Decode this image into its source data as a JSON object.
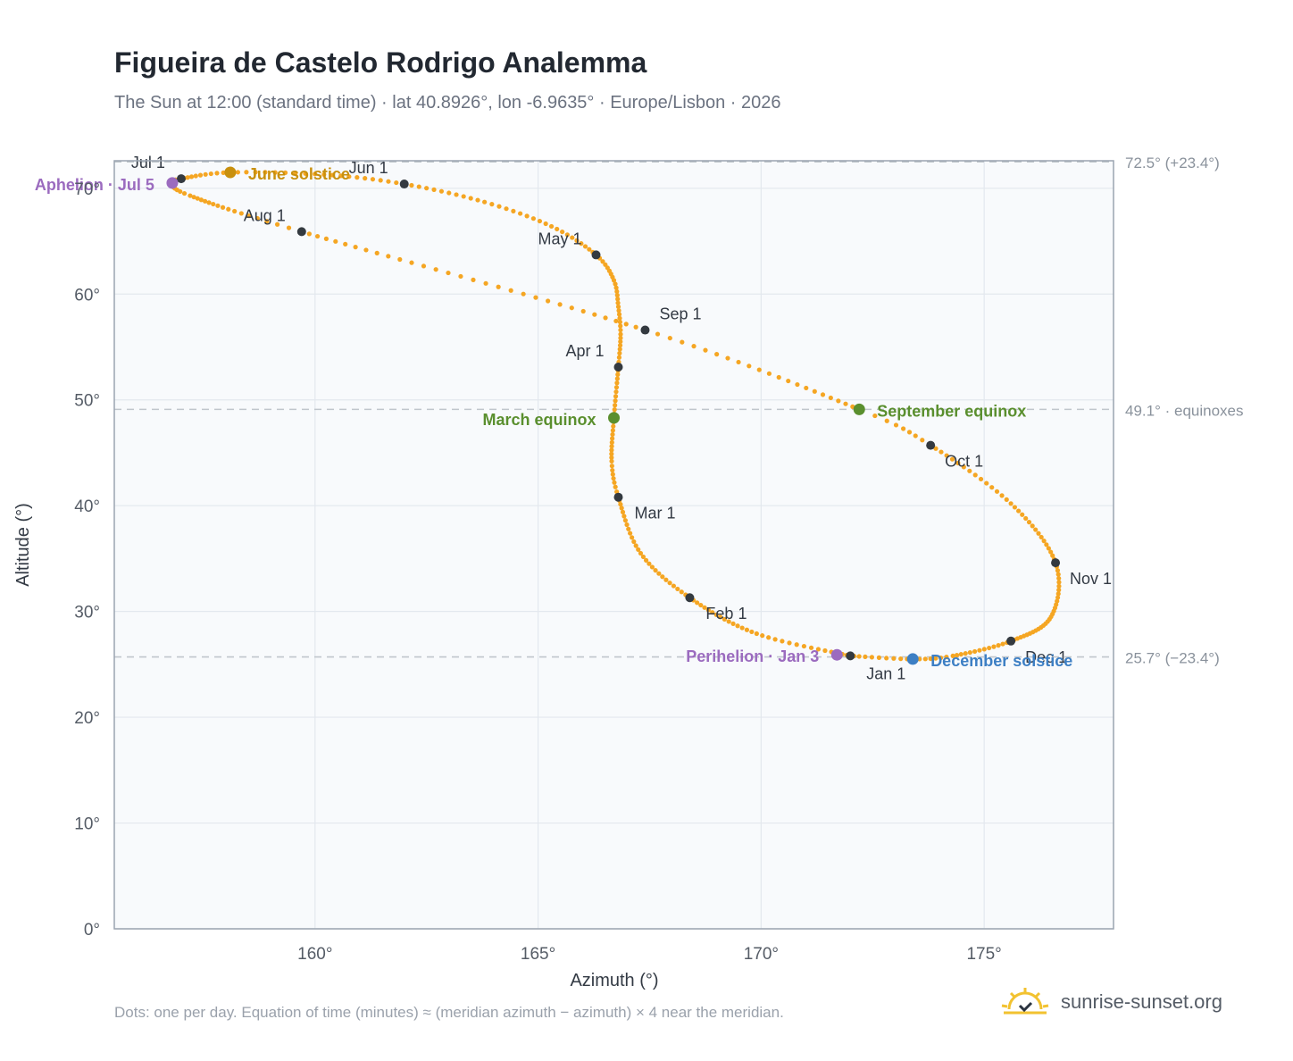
{
  "header": {
    "title": "Figueira de Castelo Rodrigo Analemma",
    "subtitle": "The Sun at 12:00 (standard time) · lat 40.8926°, lon -6.9635° · Europe/Lisbon · 2026"
  },
  "footer": {
    "note": "Dots: one per day. Equation of time (minutes) ≈ (meridian azimuth − azimuth) × 4 near the meridian.",
    "brand": "sunrise-sunset.org"
  },
  "colors": {
    "curve": "#f5a623",
    "month_marker": "#343a40",
    "equinox": "#5a8f2e",
    "june_solstice": "#c8900e",
    "december_solstice": "#3d7fc4",
    "apsis": "#9b6bbf",
    "plot_bg": "#f8fafc",
    "grid": "#e3e8ee",
    "reference_line": "#c0c6cc",
    "axis_frame": "#9aa4b0"
  },
  "chart_data": {
    "type": "scatter",
    "title": "Figueira de Castelo Rodrigo Analemma",
    "xlabel": "Azimuth (°)",
    "ylabel": "Altitude (°)",
    "xlim": [
      155.5,
      177.9
    ],
    "ylim": [
      0,
      72.6
    ],
    "xticks": [
      160,
      165,
      170,
      175
    ],
    "xtick_labels": [
      "160°",
      "165°",
      "170°",
      "175°"
    ],
    "yticks": [
      0,
      10,
      20,
      30,
      40,
      50,
      60,
      70
    ],
    "ytick_labels": [
      "0°",
      "10°",
      "20°",
      "30°",
      "40°",
      "50°",
      "60°",
      "70°"
    ],
    "grid": true,
    "series": [
      {
        "points": [
          {
            "day": 1,
            "az": 172.0,
            "alt": 25.8
          },
          {
            "day": 16,
            "az": 169.9,
            "alt": 27.9
          },
          {
            "day": 32,
            "az": 168.4,
            "alt": 31.3
          },
          {
            "day": 46,
            "az": 167.3,
            "alt": 35.5
          },
          {
            "day": 60,
            "az": 166.8,
            "alt": 40.8
          },
          {
            "day": 68,
            "az": 166.65,
            "alt": 44.2
          },
          {
            "day": 79,
            "az": 166.7,
            "alt": 48.3
          },
          {
            "day": 91,
            "az": 166.8,
            "alt": 53.1
          },
          {
            "day": 99,
            "az": 166.85,
            "alt": 56.2
          },
          {
            "day": 106,
            "az": 166.8,
            "alt": 58.8
          },
          {
            "day": 113,
            "az": 166.7,
            "alt": 61.3
          },
          {
            "day": 121,
            "az": 166.3,
            "alt": 63.7
          },
          {
            "day": 131,
            "az": 165.3,
            "alt": 66.4
          },
          {
            "day": 141,
            "az": 163.8,
            "alt": 68.7
          },
          {
            "day": 152,
            "az": 162.0,
            "alt": 70.4
          },
          {
            "day": 162,
            "az": 160.2,
            "alt": 71.3
          },
          {
            "day": 172,
            "az": 158.1,
            "alt": 71.5
          },
          {
            "day": 182,
            "az": 157.0,
            "alt": 70.9
          },
          {
            "day": 186,
            "az": 156.8,
            "alt": 70.5
          },
          {
            "day": 196,
            "az": 157.2,
            "alt": 69.3
          },
          {
            "day": 213,
            "az": 159.7,
            "alt": 65.9
          },
          {
            "day": 244,
            "az": 167.4,
            "alt": 56.6
          },
          {
            "day": 266,
            "az": 172.2,
            "alt": 49.1
          },
          {
            "day": 274,
            "az": 173.8,
            "alt": 45.7
          },
          {
            "day": 289,
            "az": 175.6,
            "alt": 40.2
          },
          {
            "day": 305,
            "az": 176.6,
            "alt": 34.6
          },
          {
            "day": 320,
            "az": 176.5,
            "alt": 29.5
          },
          {
            "day": 335,
            "az": 175.6,
            "alt": 27.2
          },
          {
            "day": 348,
            "az": 174.3,
            "alt": 25.8
          },
          {
            "day": 355,
            "az": 173.4,
            "alt": 25.5
          },
          {
            "day": 365,
            "az": 172.0,
            "alt": 25.8
          }
        ]
      }
    ],
    "month_markers": [
      {
        "label": "Jan 1",
        "az": 172.0,
        "alt": 25.8
      },
      {
        "label": "Feb 1",
        "az": 168.4,
        "alt": 31.3
      },
      {
        "label": "Mar 1",
        "az": 166.8,
        "alt": 40.8
      },
      {
        "label": "Apr 1",
        "az": 166.8,
        "alt": 53.1
      },
      {
        "label": "May 1",
        "az": 166.3,
        "alt": 63.7
      },
      {
        "label": "Jun 1",
        "az": 162.0,
        "alt": 70.4
      },
      {
        "label": "Jul 1",
        "az": 157.0,
        "alt": 70.9
      },
      {
        "label": "Aug 1",
        "az": 159.7,
        "alt": 65.9
      },
      {
        "label": "Sep 1",
        "az": 167.4,
        "alt": 56.6
      },
      {
        "label": "Oct 1",
        "az": 173.8,
        "alt": 45.7
      },
      {
        "label": "Nov 1",
        "az": 176.6,
        "alt": 34.6
      },
      {
        "label": "Dec 1",
        "az": 175.6,
        "alt": 27.2
      }
    ],
    "events": [
      {
        "label": "March equinox",
        "az": 166.7,
        "alt": 48.3,
        "kind": "equinox"
      },
      {
        "label": "September equinox",
        "az": 172.2,
        "alt": 49.1,
        "kind": "equinox"
      },
      {
        "label": "June solstice",
        "az": 158.1,
        "alt": 71.5,
        "kind": "june_solstice"
      },
      {
        "label": "December solstice",
        "az": 173.4,
        "alt": 25.5,
        "kind": "december_solstice"
      },
      {
        "label": "Aphelion · Jul 5",
        "az": 156.8,
        "alt": 70.5,
        "kind": "apsis"
      },
      {
        "label": "Perihelion · Jan 3",
        "az": 171.7,
        "alt": 25.9,
        "kind": "apsis"
      }
    ],
    "reference_lines": [
      {
        "alt": 72.5,
        "label": "72.5° (+23.4°)"
      },
      {
        "alt": 49.1,
        "label": "49.1° · equinoxes"
      },
      {
        "alt": 25.7,
        "label": "25.7° (−23.4°)"
      }
    ]
  }
}
